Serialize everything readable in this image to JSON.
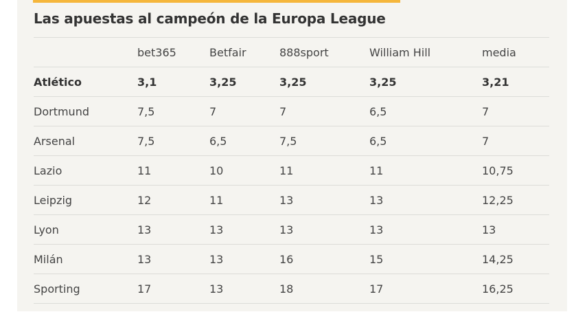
{
  "title": "Las apuestas al campeón de la Europa League",
  "colors": {
    "accent": "#f5b63b",
    "background": "#f5f4f0",
    "text": "#444444"
  },
  "chart_data": {
    "type": "table",
    "columns": [
      "",
      "bet365",
      "Betfair",
      "888sport",
      "William Hill",
      "media"
    ],
    "rows": [
      {
        "team": "Atlético",
        "values": [
          "3,1",
          "3,25",
          "3,25",
          "3,25",
          "3,21"
        ]
      },
      {
        "team": "Dortmund",
        "values": [
          "7,5",
          "7",
          "7",
          "6,5",
          "7"
        ]
      },
      {
        "team": "Arsenal",
        "values": [
          "7,5",
          "6,5",
          "7,5",
          "6,5",
          "7"
        ]
      },
      {
        "team": "Lazio",
        "values": [
          "11",
          "10",
          "11",
          "11",
          "10,75"
        ]
      },
      {
        "team": "Leipzig",
        "values": [
          "12",
          "11",
          "13",
          "13",
          "12,25"
        ]
      },
      {
        "team": "Lyon",
        "values": [
          "13",
          "13",
          "13",
          "13",
          "13"
        ]
      },
      {
        "team": "Milán",
        "values": [
          "13",
          "13",
          "16",
          "15",
          "14,25"
        ]
      },
      {
        "team": "Sporting",
        "values": [
          "17",
          "13",
          "18",
          "17",
          "16,25"
        ]
      }
    ]
  }
}
